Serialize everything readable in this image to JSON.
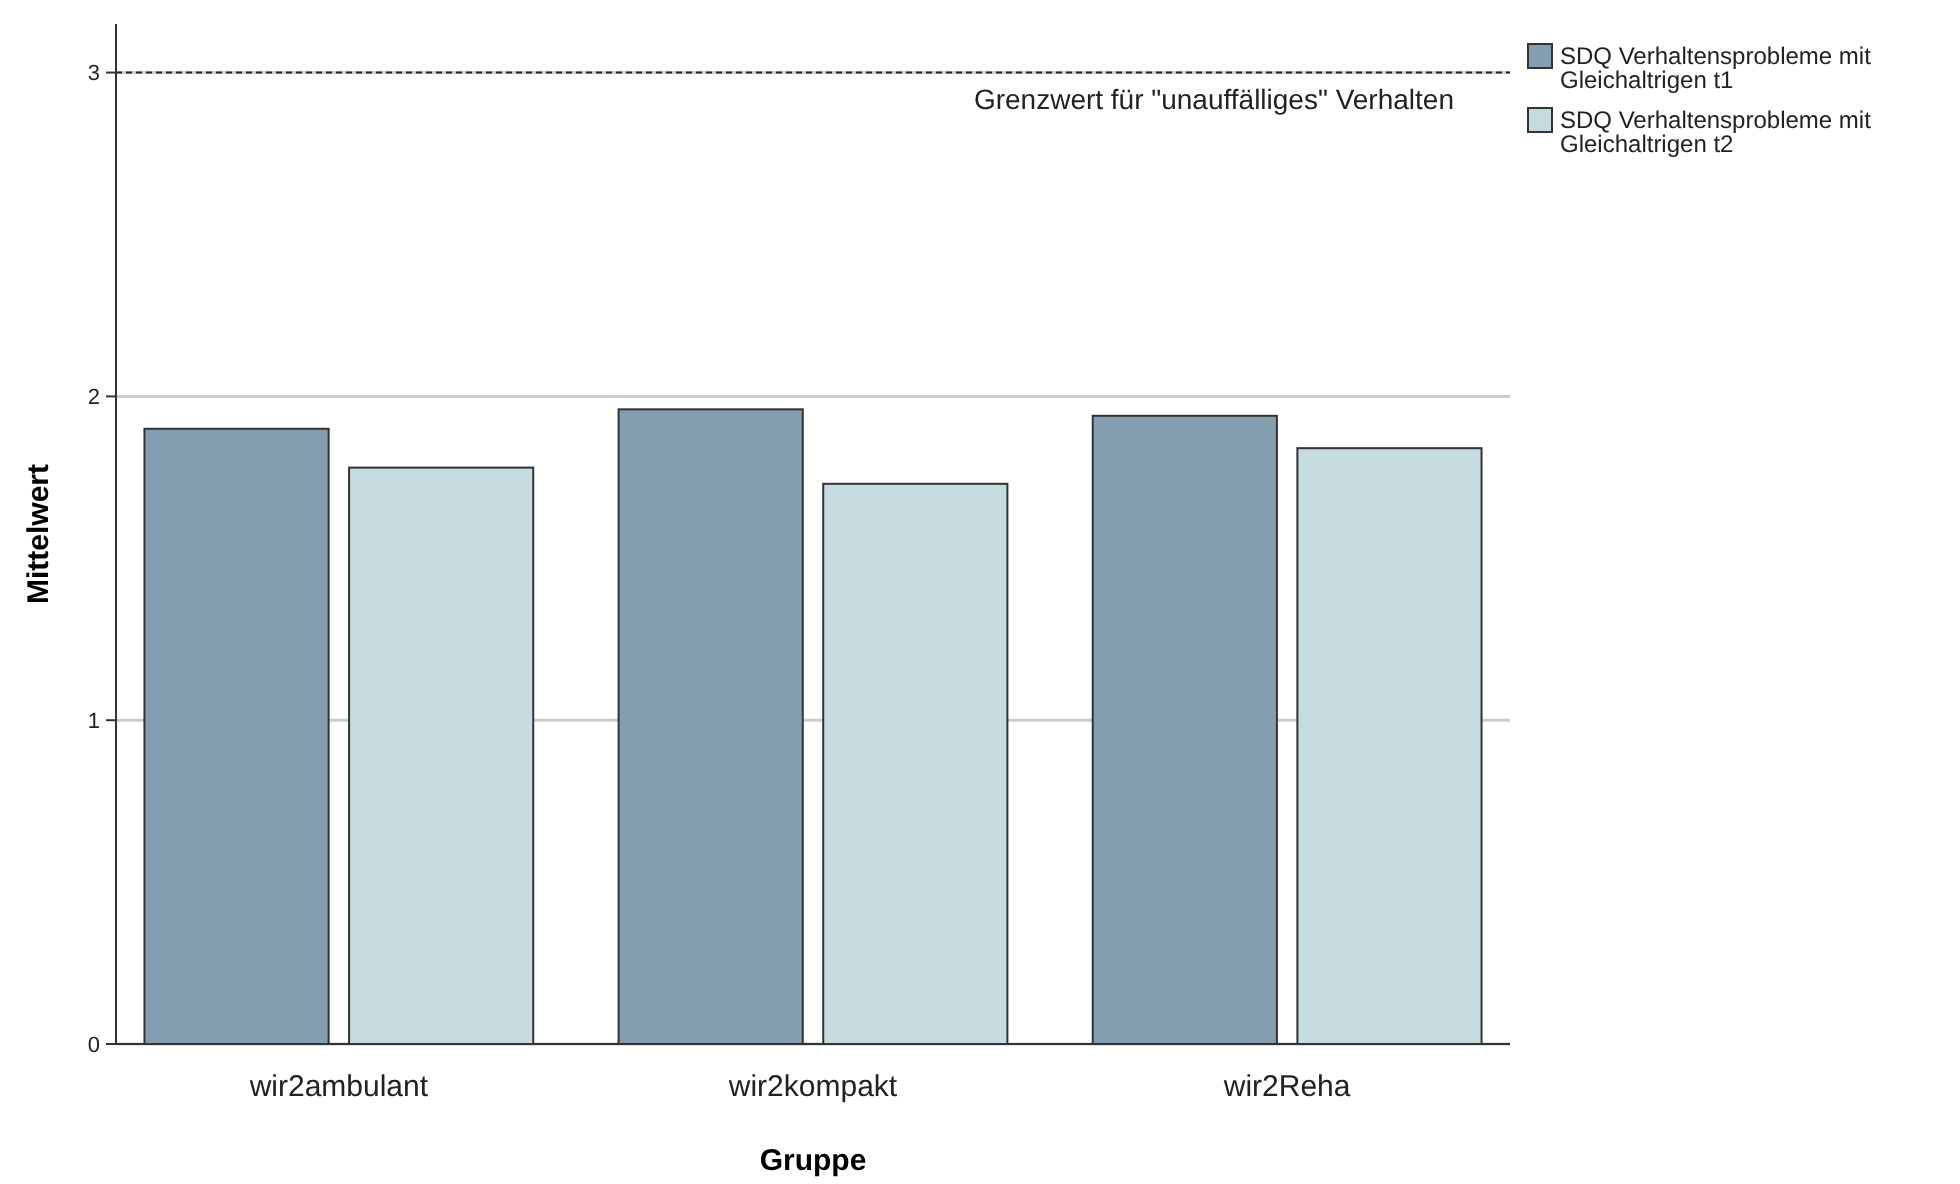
{
  "chart_data": {
    "type": "bar",
    "xlabel": "Gruppe",
    "ylabel": "Mittelwert",
    "categories": [
      "wir2ambulant",
      "wir2kompakt",
      "wir2Reha"
    ],
    "series": [
      {
        "name": "SDQ Verhaltensprobleme mit Gleichaltrigen t1",
        "color": "#849eb0",
        "values": [
          1.9,
          1.96,
          1.94
        ]
      },
      {
        "name": "SDQ Verhaltensprobleme mit Gleichaltrigen t2",
        "color": "#c5dbe0",
        "values": [
          1.78,
          1.73,
          1.84
        ]
      }
    ],
    "ylim": [
      0,
      3.15
    ],
    "yticks": [
      0,
      1,
      2,
      3
    ],
    "grid": "y",
    "legend": "top right",
    "ref_lines": [
      {
        "axis": "y",
        "value": 3,
        "label": "Grenzwert für \"unauffälliges\" Verhalten",
        "line_style": "dashed"
      }
    ]
  }
}
